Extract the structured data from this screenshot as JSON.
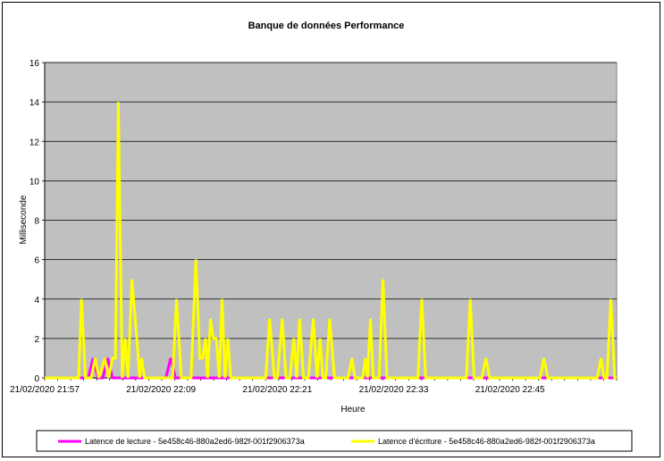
{
  "chart_data": {
    "type": "line",
    "title": "Banque de données Performance",
    "xlabel": "Heure",
    "ylabel": "Milliseconde",
    "ylim": [
      0,
      16
    ],
    "yticks": [
      0,
      2,
      4,
      6,
      8,
      10,
      12,
      14,
      16
    ],
    "x_tick_labels": [
      "21/02/2020 21:57",
      "21/02/2020 22:09",
      "21/02/2020 22:21",
      "21/02/2020 22:33",
      "21/02/2020 22:45"
    ],
    "x_tick_minutes": [
      0,
      12,
      24,
      36,
      48
    ],
    "x_range_minutes": [
      0,
      59
    ],
    "grid": "horizontal",
    "legend_position": "bottom",
    "plot_background": "#c0c0c0",
    "series": [
      {
        "name": "Latence de lecture - 5e458c46-880a2ed6-982f-001f2906373a",
        "color": "#ff00ff",
        "points": [
          [
            0,
            0
          ],
          [
            4.5,
            0
          ],
          [
            5,
            1
          ],
          [
            5.5,
            0
          ],
          [
            6,
            0
          ],
          [
            6.5,
            1
          ],
          [
            7,
            0
          ],
          [
            12.5,
            0
          ],
          [
            13,
            1
          ],
          [
            13.5,
            0
          ],
          [
            59,
            0
          ]
        ]
      },
      {
        "name": "Latence d'écriture - 5e458c46-880a2ed6-982f-001f2906373a",
        "color": "#ffff00",
        "points": [
          [
            0,
            0
          ],
          [
            3.5,
            0
          ],
          [
            3.8,
            4
          ],
          [
            4.2,
            0
          ],
          [
            4.8,
            0
          ],
          [
            5.2,
            1
          ],
          [
            5.6,
            0
          ],
          [
            6.2,
            1
          ],
          [
            6.6,
            0
          ],
          [
            7,
            1
          ],
          [
            7.3,
            1
          ],
          [
            7.6,
            14
          ],
          [
            8,
            0
          ],
          [
            8.3,
            2
          ],
          [
            8.6,
            0
          ],
          [
            9,
            5
          ],
          [
            9.5,
            2
          ],
          [
            9.8,
            0
          ],
          [
            10,
            1
          ],
          [
            10.3,
            0
          ],
          [
            13.2,
            0
          ],
          [
            13.6,
            4
          ],
          [
            14.1,
            0
          ],
          [
            15.1,
            0
          ],
          [
            15.6,
            6
          ],
          [
            16,
            1
          ],
          [
            16.3,
            1
          ],
          [
            16.6,
            2
          ],
          [
            16.8,
            0
          ],
          [
            17.1,
            3
          ],
          [
            17.4,
            2
          ],
          [
            17.7,
            2
          ],
          [
            18,
            0
          ],
          [
            18.3,
            4
          ],
          [
            18.6,
            0
          ],
          [
            18.9,
            2
          ],
          [
            19.2,
            0
          ],
          [
            22.8,
            0
          ],
          [
            23.2,
            3
          ],
          [
            23.7,
            0
          ],
          [
            24,
            0
          ],
          [
            24.5,
            3
          ],
          [
            24.9,
            0
          ],
          [
            25.3,
            0
          ],
          [
            25.7,
            2
          ],
          [
            26,
            0
          ],
          [
            26.3,
            3
          ],
          [
            26.7,
            0
          ],
          [
            27.2,
            0
          ],
          [
            27.7,
            3
          ],
          [
            28.1,
            0
          ],
          [
            28.4,
            2
          ],
          [
            28.7,
            0
          ],
          [
            29,
            0
          ],
          [
            29.4,
            3
          ],
          [
            29.9,
            0
          ],
          [
            31.3,
            0
          ],
          [
            31.7,
            1
          ],
          [
            32,
            0
          ],
          [
            32.8,
            0
          ],
          [
            33.1,
            1
          ],
          [
            33.3,
            0
          ],
          [
            33.6,
            3
          ],
          [
            33.9,
            0
          ],
          [
            34.5,
            0
          ],
          [
            34.9,
            5
          ],
          [
            35.3,
            0
          ],
          [
            38.5,
            0
          ],
          [
            38.9,
            4
          ],
          [
            39.3,
            0
          ],
          [
            43.5,
            0
          ],
          [
            43.9,
            4
          ],
          [
            44.3,
            0
          ],
          [
            45.1,
            0
          ],
          [
            45.5,
            1
          ],
          [
            45.9,
            0
          ],
          [
            51.1,
            0
          ],
          [
            51.5,
            1
          ],
          [
            51.9,
            0
          ],
          [
            57,
            0
          ],
          [
            57.4,
            1
          ],
          [
            57.7,
            0
          ],
          [
            58,
            0
          ],
          [
            58.4,
            4
          ],
          [
            58.8,
            0
          ],
          [
            59,
            0
          ]
        ]
      }
    ]
  }
}
